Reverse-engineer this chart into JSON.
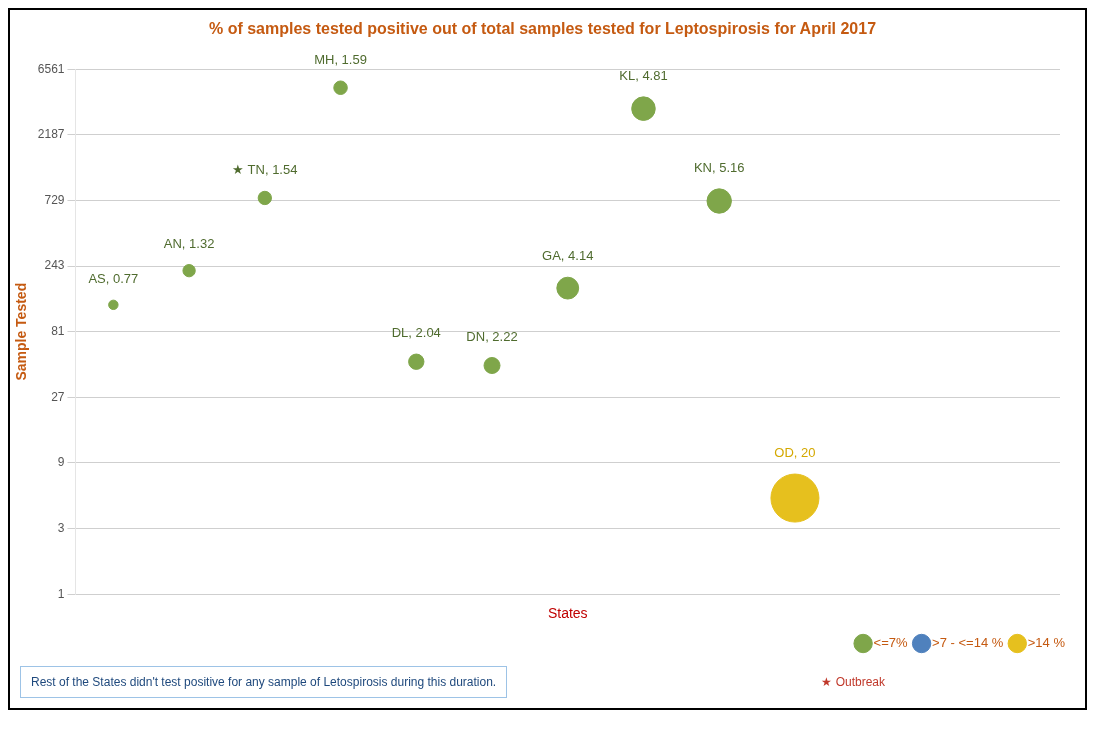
{
  "chart_data": {
    "type": "bubble",
    "title": "% of samples tested positive out of total samples tested for Leptospirosis for April 2017",
    "xlabel": "States",
    "ylabel": "Sample Tested",
    "categories": [
      null,
      null,
      null,
      null,
      null,
      null,
      null,
      null,
      null,
      null,
      null,
      null,
      null
    ],
    "series": [
      {
        "name": "<=7%",
        "color": "#7fa64a",
        "values": [
          127,
          225,
          760,
          4810,
          49,
          46,
          168,
          3390,
          722,
          null,
          null,
          null,
          null
        ],
        "sizes": [
          0.77,
          1.32,
          1.54,
          1.59,
          2.04,
          2.22,
          4.14,
          4.81,
          5.16,
          null,
          null,
          null,
          null
        ],
        "value_labels": [
          "AS, 0.77",
          "AN, 1.32",
          "★ TN, 1.54",
          "MH, 1.59",
          "DL, 2.04",
          "DN, 2.22",
          "GA, 4.14",
          "KL, 4.81",
          "KN, 5.16",
          null,
          null,
          null,
          null
        ]
      },
      {
        "name": ">7 - <=14 %",
        "color": "#4f81bd",
        "values": [
          null,
          null,
          null,
          null,
          null,
          null,
          null,
          null,
          null,
          null,
          null,
          null,
          null
        ],
        "sizes": [
          null,
          null,
          null,
          null,
          null,
          null,
          null,
          null,
          null,
          null,
          null,
          null,
          null
        ],
        "value_labels": [
          null,
          null,
          null,
          null,
          null,
          null,
          null,
          null,
          null,
          null,
          null,
          null,
          null
        ]
      },
      {
        "name": ">14 %",
        "color": "#e6c01e",
        "values": [
          null,
          null,
          null,
          null,
          null,
          null,
          null,
          null,
          null,
          5,
          null,
          null,
          null
        ],
        "sizes": [
          null,
          null,
          null,
          null,
          null,
          null,
          null,
          null,
          null,
          20,
          null,
          null,
          null
        ],
        "value_labels": [
          null,
          null,
          null,
          null,
          null,
          null,
          null,
          null,
          null,
          "OD, 20",
          null,
          null,
          null
        ]
      }
    ],
    "log": "y",
    "ylim": [
      1,
      6561
    ],
    "yticks": [
      1,
      3,
      9,
      27,
      81,
      243,
      729,
      2187,
      6561
    ],
    "grid": "y",
    "legend": "bottom right",
    "tick_labels": "y",
    "annotations": [
      "Rest of the States didn't test positive for any sample of Letospirosis during this duration.",
      "★ Outbreak"
    ]
  }
}
